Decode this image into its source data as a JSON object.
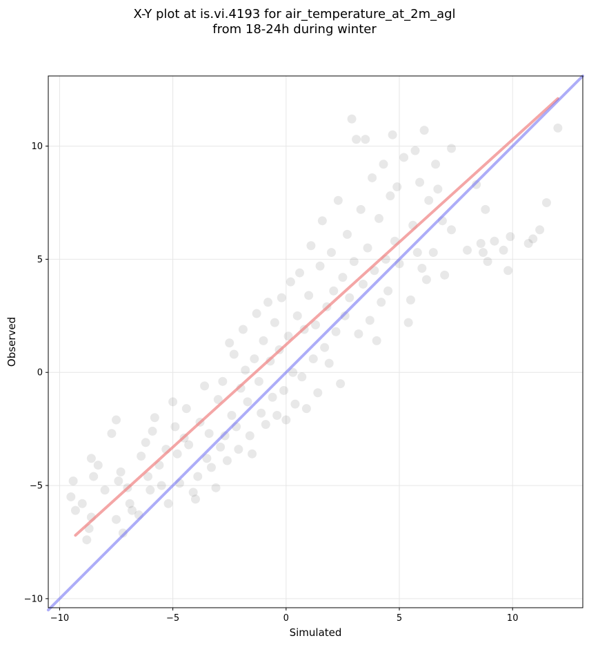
{
  "chart_data": {
    "type": "scatter",
    "title": "X-Y plot at is.vi.4193 for air_temperature_at_2m_agl",
    "subtitle": "from 18-24h during winter",
    "xlabel": "Simulated",
    "ylabel": "Observed",
    "xlim": [
      -10.5,
      13.1
    ],
    "ylim": [
      -10.4,
      13.1
    ],
    "xticks": [
      -10,
      -5,
      0,
      5,
      10
    ],
    "yticks": [
      -10,
      -5,
      0,
      5,
      10
    ],
    "xtick_labels": [
      "−10",
      "−5",
      "0",
      "5",
      "10"
    ],
    "ytick_labels": [
      "−10",
      "−5",
      "0",
      "5",
      "10"
    ],
    "grid": true,
    "point_color": "#000000",
    "point_alpha": 0.09,
    "series": [
      {
        "values": [
          [
            -9.4,
            -4.8
          ],
          [
            -9.5,
            -5.5
          ],
          [
            -9.3,
            -6.1
          ],
          [
            -9.0,
            -5.8
          ],
          [
            -8.8,
            -7.4
          ],
          [
            -8.7,
            -6.9
          ],
          [
            -8.6,
            -6.4
          ],
          [
            -8.6,
            -3.8
          ],
          [
            -8.5,
            -4.6
          ],
          [
            -8.3,
            -4.1
          ],
          [
            -8.0,
            -5.2
          ],
          [
            -7.7,
            -2.7
          ],
          [
            -7.5,
            -2.1
          ],
          [
            -7.5,
            -6.5
          ],
          [
            -7.2,
            -7.1
          ],
          [
            -7.3,
            -4.4
          ],
          [
            -7.4,
            -4.8
          ],
          [
            -7.0,
            -5.1
          ],
          [
            -6.9,
            -5.8
          ],
          [
            -6.8,
            -6.1
          ],
          [
            -6.5,
            -6.3
          ],
          [
            -6.4,
            -3.7
          ],
          [
            -6.2,
            -3.1
          ],
          [
            -6.1,
            -4.6
          ],
          [
            -6.0,
            -5.2
          ],
          [
            -5.9,
            -2.6
          ],
          [
            -5.8,
            -2.0
          ],
          [
            -5.6,
            -4.1
          ],
          [
            -5.5,
            -5.0
          ],
          [
            -5.3,
            -3.4
          ],
          [
            -5.2,
            -5.8
          ],
          [
            -5.0,
            -1.3
          ],
          [
            -4.9,
            -2.4
          ],
          [
            -4.8,
            -3.6
          ],
          [
            -4.7,
            -4.9
          ],
          [
            -4.5,
            -2.9
          ],
          [
            -4.4,
            -1.6
          ],
          [
            -4.3,
            -3.2
          ],
          [
            -4.1,
            -5.3
          ],
          [
            -4.0,
            -5.6
          ],
          [
            -3.9,
            -4.6
          ],
          [
            -3.8,
            -2.2
          ],
          [
            -3.6,
            -0.6
          ],
          [
            -3.5,
            -3.8
          ],
          [
            -3.4,
            -2.7
          ],
          [
            -3.3,
            -4.2
          ],
          [
            -3.1,
            -5.1
          ],
          [
            -3.0,
            -1.2
          ],
          [
            -2.9,
            -3.3
          ],
          [
            -2.8,
            -0.4
          ],
          [
            -2.7,
            -2.8
          ],
          [
            -2.6,
            -3.9
          ],
          [
            -2.5,
            1.3
          ],
          [
            -2.4,
            -1.9
          ],
          [
            -2.3,
            0.8
          ],
          [
            -2.2,
            -2.4
          ],
          [
            -2.1,
            -3.4
          ],
          [
            -2.0,
            -0.7
          ],
          [
            -1.9,
            1.9
          ],
          [
            -1.8,
            0.1
          ],
          [
            -1.7,
            -1.3
          ],
          [
            -1.6,
            -2.8
          ],
          [
            -1.5,
            -3.6
          ],
          [
            -1.4,
            0.6
          ],
          [
            -1.3,
            2.6
          ],
          [
            -1.2,
            -0.4
          ],
          [
            -1.1,
            -1.8
          ],
          [
            -1.0,
            1.4
          ],
          [
            -0.9,
            -2.3
          ],
          [
            -0.8,
            3.1
          ],
          [
            -0.7,
            0.5
          ],
          [
            -0.6,
            -1.1
          ],
          [
            -0.5,
            2.2
          ],
          [
            -0.4,
            -1.9
          ],
          [
            -0.3,
            1.0
          ],
          [
            -0.2,
            3.3
          ],
          [
            -0.1,
            -0.8
          ],
          [
            0.0,
            -2.1
          ],
          [
            0.1,
            1.6
          ],
          [
            0.2,
            4.0
          ],
          [
            0.3,
            0.0
          ],
          [
            0.4,
            -1.4
          ],
          [
            0.5,
            2.5
          ],
          [
            0.6,
            4.4
          ],
          [
            0.7,
            -0.2
          ],
          [
            0.8,
            1.9
          ],
          [
            0.9,
            -1.6
          ],
          [
            1.0,
            3.4
          ],
          [
            1.1,
            5.6
          ],
          [
            1.2,
            0.6
          ],
          [
            1.3,
            2.1
          ],
          [
            1.4,
            -0.9
          ],
          [
            1.5,
            4.7
          ],
          [
            1.6,
            6.7
          ],
          [
            1.7,
            1.1
          ],
          [
            1.8,
            2.9
          ],
          [
            1.9,
            0.4
          ],
          [
            2.0,
            5.3
          ],
          [
            2.1,
            3.6
          ],
          [
            2.2,
            1.8
          ],
          [
            2.3,
            7.6
          ],
          [
            2.4,
            -0.5
          ],
          [
            2.5,
            4.2
          ],
          [
            2.6,
            2.5
          ],
          [
            2.7,
            6.1
          ],
          [
            2.8,
            3.3
          ],
          [
            2.9,
            11.2
          ],
          [
            3.0,
            4.9
          ],
          [
            3.1,
            10.3
          ],
          [
            3.2,
            1.7
          ],
          [
            3.3,
            7.2
          ],
          [
            3.4,
            3.9
          ],
          [
            3.5,
            10.3
          ],
          [
            3.6,
            5.5
          ],
          [
            3.7,
            2.3
          ],
          [
            3.8,
            8.6
          ],
          [
            3.9,
            4.5
          ],
          [
            4.0,
            1.4
          ],
          [
            4.1,
            6.8
          ],
          [
            4.2,
            3.1
          ],
          [
            4.3,
            9.2
          ],
          [
            4.4,
            5.0
          ],
          [
            4.5,
            3.6
          ],
          [
            4.6,
            7.8
          ],
          [
            4.7,
            10.5
          ],
          [
            4.8,
            5.8
          ],
          [
            4.9,
            8.2
          ],
          [
            5.0,
            4.8
          ],
          [
            5.2,
            9.5
          ],
          [
            5.4,
            2.2
          ],
          [
            5.5,
            3.2
          ],
          [
            5.6,
            6.5
          ],
          [
            5.7,
            9.8
          ],
          [
            5.8,
            5.3
          ],
          [
            5.9,
            8.4
          ],
          [
            6.0,
            4.6
          ],
          [
            6.1,
            10.7
          ],
          [
            6.2,
            4.1
          ],
          [
            6.3,
            7.6
          ],
          [
            6.5,
            5.3
          ],
          [
            6.6,
            9.2
          ],
          [
            6.7,
            8.1
          ],
          [
            6.9,
            6.7
          ],
          [
            7.0,
            4.3
          ],
          [
            7.3,
            9.9
          ],
          [
            7.3,
            6.3
          ],
          [
            8.0,
            5.4
          ],
          [
            8.4,
            8.3
          ],
          [
            8.6,
            5.7
          ],
          [
            8.7,
            5.3
          ],
          [
            8.8,
            7.2
          ],
          [
            8.9,
            4.9
          ],
          [
            9.2,
            5.8
          ],
          [
            9.6,
            5.4
          ],
          [
            9.8,
            4.5
          ],
          [
            9.9,
            6.0
          ],
          [
            10.7,
            5.7
          ],
          [
            10.9,
            5.9
          ],
          [
            11.2,
            6.3
          ],
          [
            11.5,
            7.5
          ],
          [
            12.0,
            10.8
          ]
        ]
      }
    ],
    "lines": [
      {
        "name": "",
        "color": "#f08080",
        "opacity": 0.7,
        "x": [
          -9.3,
          12.0
        ],
        "y": [
          -7.2,
          12.1
        ]
      },
      {
        "name": "",
        "color": "#6a6af2",
        "opacity": 0.55,
        "x": [
          -10.5,
          13.1
        ],
        "y": [
          -10.5,
          13.1
        ]
      }
    ]
  }
}
